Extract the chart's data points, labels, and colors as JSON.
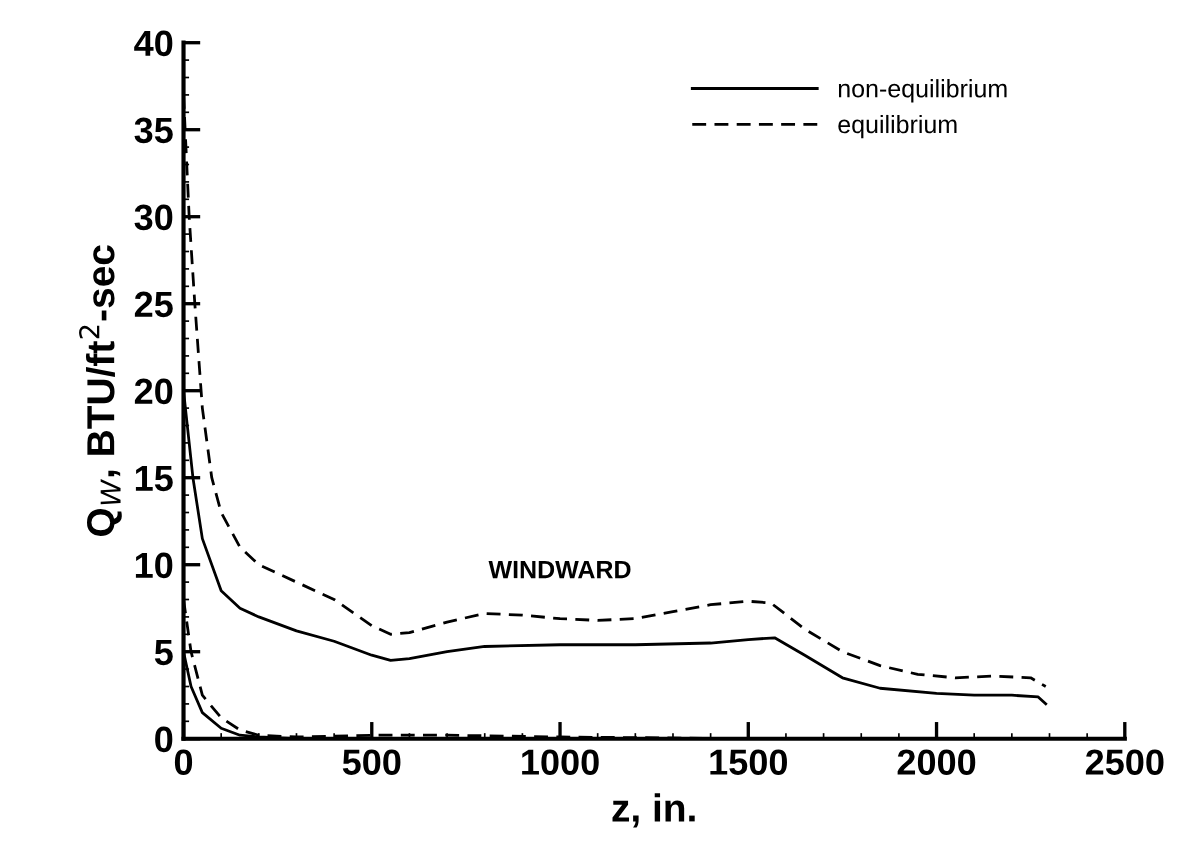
{
  "chart_data": {
    "type": "line",
    "xlabel": "z, in.",
    "ylabel": "Q$_{W}$, BTU/ft$^{2}$-sec",
    "xlim": [
      0,
      2500
    ],
    "ylim": [
      0,
      40
    ],
    "xticks": [
      0,
      500,
      1000,
      1500,
      2000,
      2500
    ],
    "yticks": [
      0,
      5,
      10,
      15,
      20,
      25,
      30,
      35,
      40
    ],
    "grid": false,
    "legend": "top right",
    "marker": "none",
    "annotations": [
      "WINDWARD"
    ],
    "series": [
      {
        "name": "non-equilibrium",
        "color": "#000000",
        "line_style": "solid",
        "x": [
          0,
          25,
          50,
          100,
          150,
          200,
          300,
          400,
          500,
          550,
          600,
          700,
          800,
          1000,
          1200,
          1400,
          1500,
          1570,
          1650,
          1750,
          1850,
          2000,
          2100,
          2200,
          2270,
          2290
        ],
        "values": [
          20,
          15,
          11.5,
          8.5,
          7.5,
          7,
          6.2,
          5.6,
          4.8,
          4.5,
          4.6,
          5.0,
          5.3,
          5.4,
          5.4,
          5.5,
          5.7,
          5.8,
          4.8,
          3.5,
          2.9,
          2.6,
          2.5,
          2.5,
          2.4,
          2.0
        ]
      },
      {
        "name": "equilibrium",
        "color": "#000000",
        "line_style": "dashed",
        "x": [
          0,
          15,
          30,
          50,
          75,
          100,
          150,
          200,
          300,
          400,
          500,
          550,
          600,
          700,
          800,
          900,
          1000,
          1100,
          1200,
          1300,
          1400,
          1500,
          1560,
          1650,
          1750,
          1850,
          1950,
          2050,
          2150,
          2250,
          2290
        ],
        "values": [
          37,
          30,
          25,
          19,
          15,
          13,
          11,
          10,
          9,
          8,
          6.5,
          6.0,
          6.1,
          6.7,
          7.2,
          7.1,
          6.9,
          6.8,
          6.9,
          7.3,
          7.7,
          7.9,
          7.8,
          6.3,
          5.0,
          4.2,
          3.7,
          3.5,
          3.6,
          3.5,
          3.0
        ]
      },
      {
        "color": "#000000",
        "line_style": "solid",
        "x": [
          0,
          20,
          50,
          100,
          150,
          200,
          300,
          500,
          800,
          1100,
          1500
        ],
        "values": [
          5,
          3,
          1.5,
          0.6,
          0.2,
          0.1,
          0.0,
          0.0,
          0.0,
          0.0,
          0.0
        ]
      },
      {
        "color": "#000000",
        "line_style": "dashed",
        "x": [
          0,
          20,
          50,
          100,
          150,
          200,
          300,
          500,
          700,
          1000,
          1500
        ],
        "values": [
          8,
          5,
          2.5,
          1.2,
          0.5,
          0.2,
          0.1,
          0.2,
          0.2,
          0.1,
          0.0
        ]
      }
    ]
  }
}
